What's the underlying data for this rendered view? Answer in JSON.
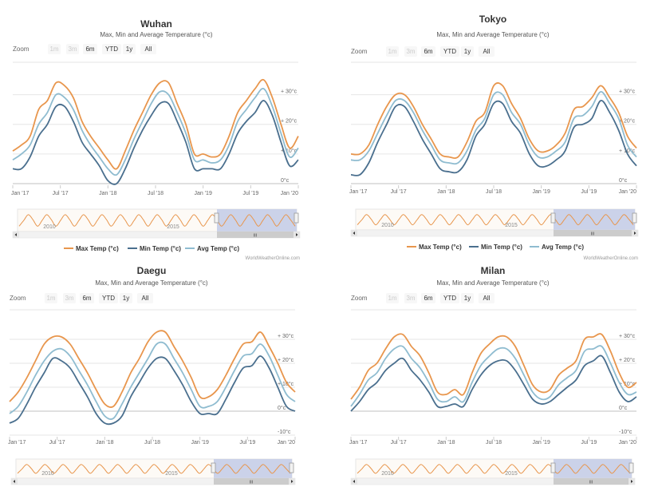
{
  "zoom": {
    "label": "Zoom",
    "buttons": [
      "1m",
      "3m",
      "6m",
      "YTD",
      "1y",
      "All"
    ],
    "disabled": [
      true,
      true,
      false,
      false,
      false,
      false
    ]
  },
  "x_ticks": [
    "Jan '17",
    "Jul '17",
    "Jan '18",
    "Jul '18",
    "Jan '19",
    "Jul '19",
    "Jan '20"
  ],
  "navigator_ticks": [
    "2010",
    "2015"
  ],
  "scrollbar_grip": "III",
  "legend": [
    "Max Temp (°c)",
    "Min Temp (°c)",
    "Avg Temp (°c)"
  ],
  "credit": "WorldWeatherOnline.com",
  "colors": {
    "max": "#e8964d",
    "min": "#4a6f8e",
    "avg": "#8fbcd0",
    "navigator_line": "#e8964d",
    "navigator_mask": "#c5cde8",
    "grid": "#e6e6e6",
    "zero_line": "#c0c0c0"
  },
  "chart_data": [
    {
      "type": "line",
      "title": "Wuhan",
      "subtitle": "Max, Min and Average Temperature (°c)",
      "x_range": [
        "2017-01",
        "2020-01"
      ],
      "ylim": [
        0,
        35
      ],
      "y_ticks": [
        "0°c",
        "+ 10°c",
        "+ 20°c",
        "+ 30°c"
      ],
      "y_tick_values": [
        0,
        10,
        20,
        30
      ],
      "series": [
        {
          "name": "Max Temp (°c)",
          "values": [
            11,
            13,
            16,
            25,
            28,
            34,
            33,
            29,
            21,
            16,
            12,
            8,
            5,
            11,
            18,
            24,
            30,
            34,
            34,
            27,
            20,
            10,
            10,
            9,
            10,
            16,
            24,
            28,
            32,
            35,
            29,
            20,
            12,
            16
          ]
        },
        {
          "name": "Avg Temp (°c)",
          "values": [
            8,
            10,
            13,
            20,
            24,
            30,
            29,
            25,
            18,
            13,
            9,
            5,
            3,
            8,
            15,
            21,
            27,
            31,
            30,
            24,
            17,
            8,
            8,
            7,
            8,
            13,
            21,
            25,
            29,
            32,
            26,
            17,
            9,
            12
          ]
        },
        {
          "name": "Min Temp (°c)",
          "values": [
            5,
            5,
            9,
            16,
            20,
            26,
            26,
            21,
            14,
            10,
            6,
            1,
            0,
            5,
            12,
            18,
            23,
            27,
            27,
            21,
            14,
            5,
            5,
            5,
            5,
            10,
            17,
            21,
            24,
            28,
            23,
            14,
            6,
            8
          ]
        }
      ]
    },
    {
      "type": "line",
      "title": "Tokyo",
      "subtitle": "Max, Min and Average Temperature (°c)",
      "x_range": [
        "2017-01",
        "2020-01"
      ],
      "ylim": [
        0,
        35
      ],
      "y_ticks": [
        "0°c",
        "+ 10°c",
        "+ 20°c",
        "+ 30°c"
      ],
      "y_tick_values": [
        0,
        10,
        20,
        30
      ],
      "series": [
        {
          "name": "Max Temp (°c)",
          "values": [
            10,
            10,
            13,
            20,
            26,
            30,
            30,
            26,
            20,
            15,
            10,
            9,
            9,
            14,
            21,
            24,
            33,
            33,
            27,
            22,
            15,
            11,
            11,
            13,
            17,
            25,
            26,
            29,
            33,
            29,
            24,
            16,
            12
          ]
        },
        {
          "name": "Avg Temp (°c)",
          "values": [
            8,
            8,
            11,
            17,
            23,
            28,
            28,
            24,
            18,
            13,
            8,
            7,
            7,
            11,
            18,
            22,
            30,
            30,
            24,
            20,
            13,
            9,
            9,
            11,
            14,
            22,
            23,
            26,
            31,
            27,
            22,
            13,
            9
          ]
        },
        {
          "name": "Min Temp (°c)",
          "values": [
            3,
            3,
            7,
            14,
            20,
            26,
            26,
            21,
            15,
            10,
            5,
            4,
            4,
            8,
            16,
            20,
            27,
            27,
            21,
            17,
            10,
            6,
            6,
            8,
            11,
            19,
            20,
            22,
            28,
            24,
            18,
            10,
            6
          ]
        }
      ]
    },
    {
      "type": "line",
      "title": "Daegu",
      "subtitle": "Max, Min and Average Temperature (°c)",
      "x_range": [
        "2017-01",
        "2020-01"
      ],
      "ylim": [
        -10,
        35
      ],
      "y_ticks": [
        "-10°c",
        "0°c",
        "+ 10°c",
        "+ 20°c",
        "+ 30°c"
      ],
      "y_tick_values": [
        -10,
        0,
        10,
        20,
        30
      ],
      "series": [
        {
          "name": "Max Temp (°c)",
          "values": [
            4,
            8,
            14,
            21,
            28,
            31,
            31,
            28,
            22,
            16,
            9,
            3,
            2,
            8,
            16,
            22,
            29,
            33,
            33,
            27,
            21,
            14,
            6,
            6,
            9,
            15,
            22,
            28,
            29,
            33,
            27,
            20,
            12,
            8
          ]
        },
        {
          "name": "Avg Temp (°c)",
          "values": [
            -1,
            2,
            8,
            15,
            21,
            25,
            26,
            23,
            17,
            11,
            4,
            -2,
            -3,
            3,
            10,
            16,
            22,
            28,
            28,
            22,
            16,
            9,
            2,
            2,
            4,
            10,
            17,
            23,
            24,
            28,
            23,
            15,
            7,
            4
          ]
        },
        {
          "name": "Min Temp (°c)",
          "values": [
            -5,
            -3,
            3,
            10,
            16,
            22,
            21,
            18,
            12,
            6,
            -1,
            -5,
            -5,
            -2,
            6,
            12,
            18,
            22,
            22,
            17,
            11,
            4,
            -1,
            -1,
            -1,
            5,
            12,
            18,
            19,
            23,
            18,
            10,
            2,
            0
          ]
        }
      ]
    },
    {
      "type": "line",
      "title": "Milan",
      "subtitle": "Max, Min and Average Temperature (°c)",
      "x_range": [
        "2017-01",
        "2020-01"
      ],
      "ylim": [
        -10,
        35
      ],
      "y_ticks": [
        "-10°c",
        "0°c",
        "+ 10°c",
        "+ 20°c",
        "+ 30°c"
      ],
      "y_tick_values": [
        -10,
        0,
        10,
        20,
        30
      ],
      "series": [
        {
          "name": "Max Temp (°c)",
          "values": [
            5,
            10,
            17,
            20,
            26,
            31,
            32,
            27,
            23,
            16,
            8,
            7,
            9,
            7,
            16,
            24,
            28,
            31,
            31,
            27,
            19,
            11,
            8,
            9,
            15,
            18,
            21,
            30,
            31,
            32,
            25,
            16,
            10,
            12
          ]
        },
        {
          "name": "Avg Temp (°c)",
          "values": [
            2,
            7,
            13,
            16,
            22,
            26,
            27,
            22,
            18,
            12,
            5,
            4,
            6,
            4,
            12,
            19,
            23,
            26,
            26,
            22,
            15,
            8,
            5,
            6,
            11,
            14,
            17,
            25,
            26,
            27,
            20,
            12,
            7,
            8
          ]
        },
        {
          "name": "Min Temp (°c)",
          "values": [
            0,
            4,
            9,
            12,
            17,
            20,
            22,
            17,
            13,
            8,
            2,
            2,
            3,
            2,
            9,
            15,
            19,
            21,
            21,
            17,
            11,
            5,
            3,
            4,
            7,
            10,
            13,
            19,
            21,
            23,
            16,
            8,
            4,
            6
          ]
        }
      ]
    }
  ]
}
